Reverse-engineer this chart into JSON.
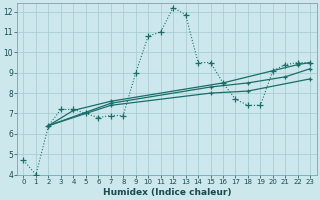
{
  "xlabel": "Humidex (Indice chaleur)",
  "bg_color": "#cce8ec",
  "grid_color": "#aacdd4",
  "line_color": "#1a6e6a",
  "xlim": [
    -0.5,
    23.5
  ],
  "ylim": [
    4,
    12.4
  ],
  "xticks": [
    0,
    1,
    2,
    3,
    4,
    5,
    6,
    7,
    8,
    9,
    10,
    11,
    12,
    13,
    14,
    15,
    16,
    17,
    18,
    19,
    20,
    21,
    22,
    23
  ],
  "yticks": [
    4,
    5,
    6,
    7,
    8,
    9,
    10,
    11,
    12
  ],
  "main_line": [
    [
      0,
      4.7
    ],
    [
      1,
      4.0
    ],
    [
      2,
      6.4
    ],
    [
      3,
      7.2
    ],
    [
      4,
      7.2
    ],
    [
      5,
      7.0
    ],
    [
      6,
      6.8
    ],
    [
      7,
      6.9
    ],
    [
      8,
      6.9
    ],
    [
      9,
      9.0
    ],
    [
      10,
      10.8
    ],
    [
      11,
      11.0
    ],
    [
      12,
      12.2
    ],
    [
      13,
      11.85
    ],
    [
      14,
      9.5
    ],
    [
      15,
      9.5
    ],
    [
      16,
      8.5
    ],
    [
      17,
      7.7
    ],
    [
      18,
      7.4
    ],
    [
      19,
      7.4
    ],
    [
      20,
      9.1
    ],
    [
      21,
      9.4
    ],
    [
      22,
      9.5
    ],
    [
      23,
      9.5
    ]
  ],
  "trend_line1": [
    [
      2,
      6.4
    ],
    [
      4,
      7.15
    ],
    [
      7,
      7.6
    ],
    [
      16,
      8.5
    ],
    [
      22,
      9.4
    ],
    [
      23,
      9.5
    ]
  ],
  "trend_line2": [
    [
      2,
      6.4
    ],
    [
      7,
      7.5
    ],
    [
      15,
      8.3
    ],
    [
      18,
      8.5
    ],
    [
      21,
      8.8
    ],
    [
      23,
      9.2
    ]
  ],
  "trend_line3": [
    [
      2,
      6.4
    ],
    [
      7,
      7.4
    ],
    [
      15,
      8.0
    ],
    [
      18,
      8.1
    ],
    [
      23,
      8.7
    ]
  ]
}
